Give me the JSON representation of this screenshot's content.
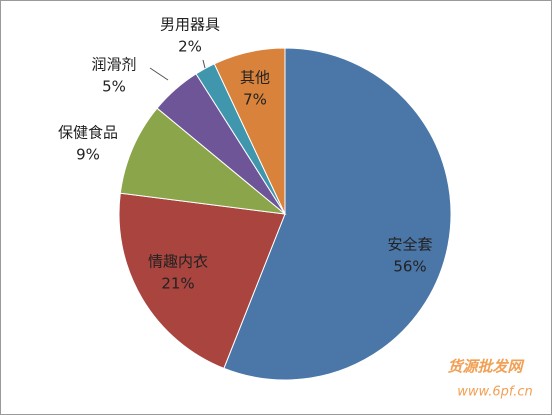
{
  "chart_data": {
    "type": "pie",
    "categories": [
      "安全套",
      "情趣内衣",
      "保健食品",
      "润滑剂",
      "男用器具",
      "其他"
    ],
    "values": [
      56,
      21,
      9,
      5,
      2,
      7
    ],
    "value_labels": [
      "56%",
      "21%",
      "9%",
      "5%",
      "2%",
      "7%"
    ],
    "colors": [
      "#4a76a8",
      "#a9443f",
      "#8ba54a",
      "#6e5597",
      "#3f96ad",
      "#d9823b"
    ]
  },
  "watermark": {
    "name": "货源批发网",
    "url": "www.6pf.cn"
  }
}
